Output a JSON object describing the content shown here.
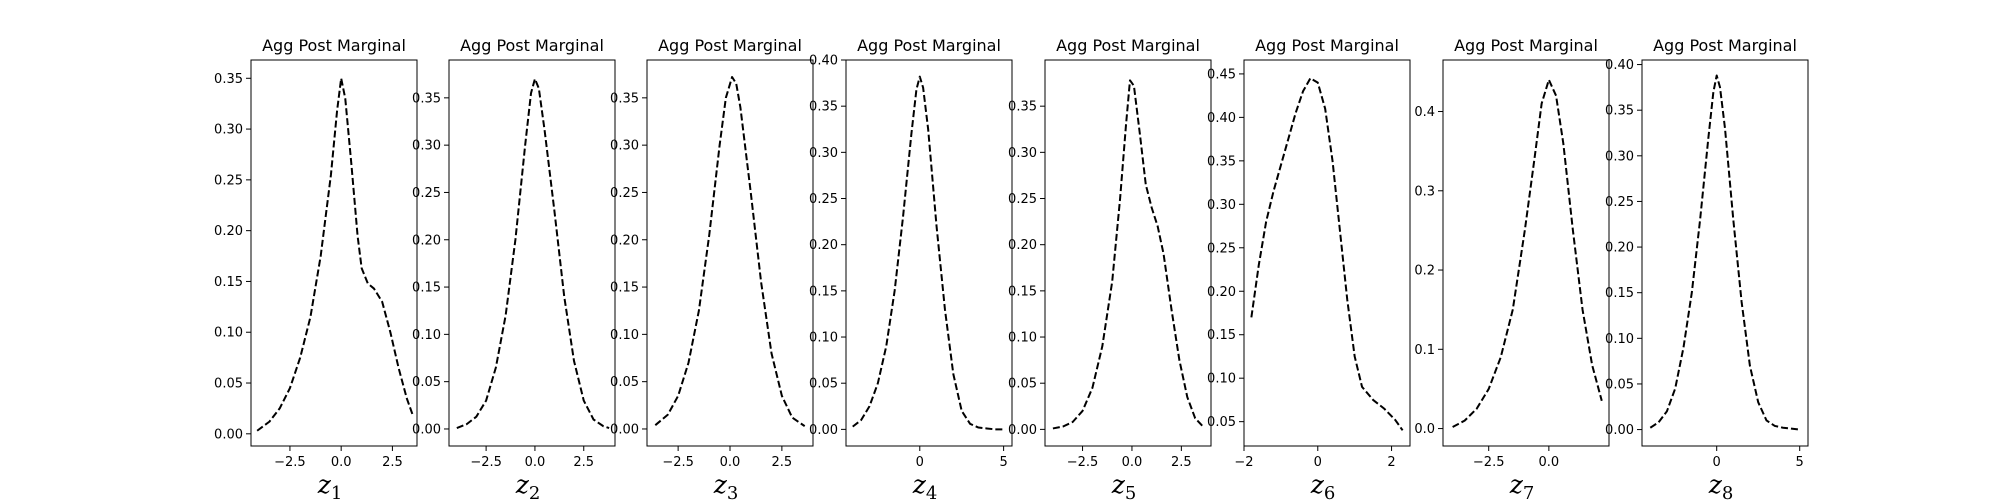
{
  "chart_data": [
    {
      "type": "line",
      "title": "Agg Post Marginal",
      "xlabel": "z",
      "xlabel_subscript": "1",
      "line_style": "dashed",
      "line_color": "#000000",
      "xlim": [
        -4.4,
        3.7
      ],
      "ylim": [
        -0.012,
        0.368
      ],
      "xticks": [
        -2.5,
        0.0,
        2.5
      ],
      "xtick_labels": [
        "−2.5",
        "0.0",
        "2.5"
      ],
      "yticks": [
        0.0,
        0.05,
        0.1,
        0.15,
        0.2,
        0.25,
        0.3,
        0.35
      ],
      "ytick_labels": [
        "0.00",
        "0.05",
        "0.10",
        "0.15",
        "0.20",
        "0.25",
        "0.30",
        "0.35"
      ],
      "x": [
        -4.1,
        -3.5,
        -3.0,
        -2.5,
        -2.0,
        -1.5,
        -1.0,
        -0.5,
        -0.2,
        0.0,
        0.2,
        0.5,
        0.8,
        1.0,
        1.3,
        1.6,
        2.0,
        2.4,
        2.8,
        3.2,
        3.5
      ],
      "y": [
        0.003,
        0.012,
        0.025,
        0.045,
        0.075,
        0.115,
        0.175,
        0.255,
        0.318,
        0.35,
        0.33,
        0.265,
        0.195,
        0.163,
        0.148,
        0.143,
        0.13,
        0.1,
        0.065,
        0.035,
        0.018
      ]
    },
    {
      "type": "line",
      "title": "Agg Post Marginal",
      "xlabel": "z",
      "xlabel_subscript": "2",
      "line_style": "dashed",
      "line_color": "#000000",
      "xlim": [
        -4.4,
        4.1
      ],
      "ylim": [
        -0.018,
        0.39
      ],
      "xticks": [
        -2.5,
        0.0,
        2.5
      ],
      "xtick_labels": [
        "−2.5",
        "0.0",
        "2.5"
      ],
      "yticks": [
        0.0,
        0.05,
        0.1,
        0.15,
        0.2,
        0.25,
        0.3,
        0.35
      ],
      "ytick_labels": [
        "0.00",
        "0.05",
        "0.10",
        "0.15",
        "0.20",
        "0.25",
        "0.30",
        "0.35"
      ],
      "x": [
        -4.0,
        -3.5,
        -3.0,
        -2.5,
        -2.0,
        -1.5,
        -1.0,
        -0.5,
        -0.2,
        0.0,
        0.2,
        0.5,
        1.0,
        1.5,
        2.0,
        2.5,
        3.0,
        3.5,
        3.8
      ],
      "y": [
        0.001,
        0.005,
        0.013,
        0.03,
        0.065,
        0.12,
        0.2,
        0.3,
        0.355,
        0.37,
        0.36,
        0.315,
        0.23,
        0.14,
        0.072,
        0.03,
        0.01,
        0.003,
        0.001
      ]
    },
    {
      "type": "line",
      "title": "Agg Post Marginal",
      "xlabel": "z",
      "xlabel_subscript": "3",
      "line_style": "dashed",
      "line_color": "#000000",
      "xlim": [
        -4.0,
        4.0
      ],
      "ylim": [
        -0.018,
        0.39
      ],
      "xticks": [
        -2.5,
        0.0,
        2.5
      ],
      "xtick_labels": [
        "−2.5",
        "0.0",
        "2.5"
      ],
      "yticks": [
        0.0,
        0.05,
        0.1,
        0.15,
        0.2,
        0.25,
        0.3,
        0.35
      ],
      "ytick_labels": [
        "0.00",
        "0.05",
        "0.10",
        "0.15",
        "0.20",
        "0.25",
        "0.30",
        "0.35"
      ],
      "x": [
        -3.6,
        -3.0,
        -2.5,
        -2.0,
        -1.5,
        -1.0,
        -0.5,
        -0.2,
        0.1,
        0.3,
        0.5,
        1.0,
        1.5,
        2.0,
        2.5,
        3.0,
        3.6
      ],
      "y": [
        0.004,
        0.015,
        0.035,
        0.07,
        0.125,
        0.205,
        0.3,
        0.35,
        0.372,
        0.365,
        0.34,
        0.25,
        0.155,
        0.08,
        0.035,
        0.012,
        0.003
      ]
    },
    {
      "type": "line",
      "title": "Agg Post Marginal",
      "xlabel": "z",
      "xlabel_subscript": "4",
      "line_style": "dashed",
      "line_color": "#000000",
      "xlim": [
        -4.4,
        5.5
      ],
      "ylim": [
        -0.018,
        0.4
      ],
      "xticks": [
        0,
        5
      ],
      "xtick_labels": [
        "0",
        "5"
      ],
      "yticks": [
        0.0,
        0.05,
        0.1,
        0.15,
        0.2,
        0.25,
        0.3,
        0.35,
        0.4
      ],
      "ytick_labels": [
        "0.00",
        "0.05",
        "0.10",
        "0.15",
        "0.20",
        "0.25",
        "0.30",
        "0.35",
        "0.40"
      ],
      "x": [
        -4.0,
        -3.5,
        -3.0,
        -2.5,
        -2.0,
        -1.5,
        -1.0,
        -0.5,
        -0.2,
        0.0,
        0.2,
        0.5,
        1.0,
        1.5,
        2.0,
        2.5,
        3.0,
        3.5,
        4.0,
        4.5,
        5.0
      ],
      "y": [
        0.003,
        0.01,
        0.025,
        0.05,
        0.09,
        0.15,
        0.23,
        0.32,
        0.368,
        0.382,
        0.37,
        0.325,
        0.22,
        0.13,
        0.06,
        0.02,
        0.006,
        0.002,
        0.001,
        0.0,
        0.0
      ]
    },
    {
      "type": "line",
      "title": "Agg Post Marginal",
      "xlabel": "z",
      "xlabel_subscript": "5",
      "line_style": "dashed",
      "line_color": "#000000",
      "xlim": [
        -4.4,
        4.0
      ],
      "ylim": [
        -0.018,
        0.4
      ],
      "xticks": [
        -2.5,
        0.0,
        2.5
      ],
      "xtick_labels": [
        "−2.5",
        "0.0",
        "2.5"
      ],
      "yticks": [
        0.0,
        0.05,
        0.1,
        0.15,
        0.2,
        0.25,
        0.3,
        0.35
      ],
      "ytick_labels": [
        "0.00",
        "0.05",
        "0.10",
        "0.15",
        "0.20",
        "0.25",
        "0.30",
        "0.35"
      ],
      "x": [
        -4.0,
        -3.5,
        -3.0,
        -2.5,
        -2.0,
        -1.5,
        -1.0,
        -0.6,
        -0.3,
        -0.1,
        0.1,
        0.4,
        0.7,
        1.0,
        1.3,
        1.6,
        2.0,
        2.4,
        2.8,
        3.2,
        3.6
      ],
      "y": [
        0.001,
        0.003,
        0.008,
        0.02,
        0.045,
        0.09,
        0.16,
        0.25,
        0.33,
        0.378,
        0.372,
        0.32,
        0.265,
        0.24,
        0.22,
        0.19,
        0.13,
        0.075,
        0.035,
        0.012,
        0.003
      ]
    },
    {
      "type": "line",
      "title": "Agg Post Marginal",
      "xlabel": "z",
      "xlabel_subscript": "6",
      "line_style": "dashed",
      "line_color": "#000000",
      "xlim": [
        -2.0,
        2.5
      ],
      "ylim": [
        0.022,
        0.466
      ],
      "xticks": [
        -2,
        0,
        2
      ],
      "xtick_labels": [
        "−2",
        "0",
        "2"
      ],
      "yticks": [
        0.05,
        0.1,
        0.15,
        0.2,
        0.25,
        0.3,
        0.35,
        0.4,
        0.45
      ],
      "ytick_labels": [
        "0.05",
        "0.10",
        "0.15",
        "0.20",
        "0.25",
        "0.30",
        "0.35",
        "0.40",
        "0.45"
      ],
      "x": [
        -1.8,
        -1.6,
        -1.4,
        -1.2,
        -1.0,
        -0.8,
        -0.6,
        -0.4,
        -0.2,
        0.0,
        0.2,
        0.4,
        0.6,
        0.8,
        1.0,
        1.2,
        1.5,
        1.8,
        2.1,
        2.3
      ],
      "y": [
        0.17,
        0.23,
        0.28,
        0.315,
        0.345,
        0.375,
        0.405,
        0.43,
        0.445,
        0.44,
        0.41,
        0.35,
        0.27,
        0.19,
        0.125,
        0.09,
        0.075,
        0.065,
        0.052,
        0.04
      ]
    },
    {
      "type": "line",
      "title": "Agg Post Marginal",
      "xlabel": "z",
      "xlabel_subscript": "7",
      "line_style": "dashed",
      "line_color": "#000000",
      "xlim": [
        -4.4,
        2.5
      ],
      "ylim": [
        -0.022,
        0.465
      ],
      "xticks": [
        -2.5,
        0.0
      ],
      "xtick_labels": [
        "−2.5",
        "0.0"
      ],
      "yticks": [
        0.0,
        0.1,
        0.2,
        0.3,
        0.4
      ],
      "ytick_labels": [
        "0.0",
        "0.1",
        "0.2",
        "0.3",
        "0.4"
      ],
      "x": [
        -4.0,
        -3.5,
        -3.0,
        -2.5,
        -2.0,
        -1.5,
        -1.0,
        -0.6,
        -0.3,
        0.0,
        0.3,
        0.6,
        1.0,
        1.4,
        1.8,
        2.2
      ],
      "y": [
        0.002,
        0.01,
        0.025,
        0.05,
        0.09,
        0.15,
        0.25,
        0.34,
        0.41,
        0.44,
        0.42,
        0.36,
        0.25,
        0.15,
        0.08,
        0.035
      ]
    },
    {
      "type": "line",
      "title": "Agg Post Marginal",
      "xlabel": "z",
      "xlabel_subscript": "8",
      "line_style": "dashed",
      "line_color": "#000000",
      "xlim": [
        -4.5,
        5.5
      ],
      "ylim": [
        -0.018,
        0.405
      ],
      "xticks": [
        0,
        5
      ],
      "xtick_labels": [
        "0",
        "5"
      ],
      "yticks": [
        0.0,
        0.05,
        0.1,
        0.15,
        0.2,
        0.25,
        0.3,
        0.35,
        0.4
      ],
      "ytick_labels": [
        "0.00",
        "0.05",
        "0.10",
        "0.15",
        "0.20",
        "0.25",
        "0.30",
        "0.35",
        "0.40"
      ],
      "x": [
        -4.0,
        -3.5,
        -3.0,
        -2.5,
        -2.0,
        -1.5,
        -1.0,
        -0.5,
        -0.2,
        0.0,
        0.2,
        0.5,
        1.0,
        1.5,
        2.0,
        2.5,
        3.0,
        3.5,
        4.0,
        4.5,
        5.0
      ],
      "y": [
        0.002,
        0.008,
        0.02,
        0.045,
        0.09,
        0.15,
        0.23,
        0.32,
        0.37,
        0.388,
        0.375,
        0.33,
        0.23,
        0.14,
        0.07,
        0.03,
        0.01,
        0.004,
        0.002,
        0.001,
        0.0
      ]
    }
  ]
}
